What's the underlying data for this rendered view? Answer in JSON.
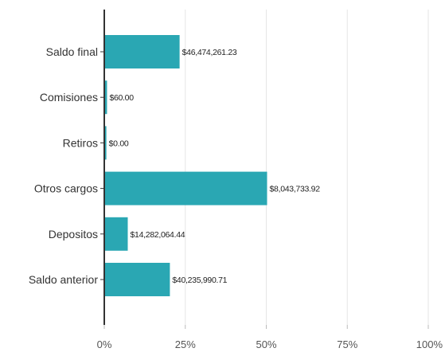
{
  "chart_data": {
    "type": "bar",
    "orientation": "horizontal",
    "title": "",
    "xlabel": "",
    "ylabel": "",
    "categories": [
      "Saldo final",
      "Comisiones",
      "Retiros",
      "Otros cargos",
      "Depositos",
      "Saldo anterior"
    ],
    "values": [
      23.0,
      0.6,
      0.4,
      50.0,
      7.0,
      20.0
    ],
    "value_labels": [
      "$46,474,261.23",
      "$60.00",
      "$0.00",
      "$8,043,733.92",
      "$14,282,064.44",
      "$40,235,990.71"
    ],
    "xlim": [
      0,
      100
    ],
    "xticks": [
      "0%",
      "25%",
      "50%",
      "75%",
      "100%"
    ],
    "xtick_values": [
      0,
      25,
      50,
      75,
      100
    ],
    "grid": "vertical",
    "legend": "none",
    "bar_color": "#2aa7b3",
    "grid_color": "#e6e6e6",
    "axis_color": "#333333"
  }
}
